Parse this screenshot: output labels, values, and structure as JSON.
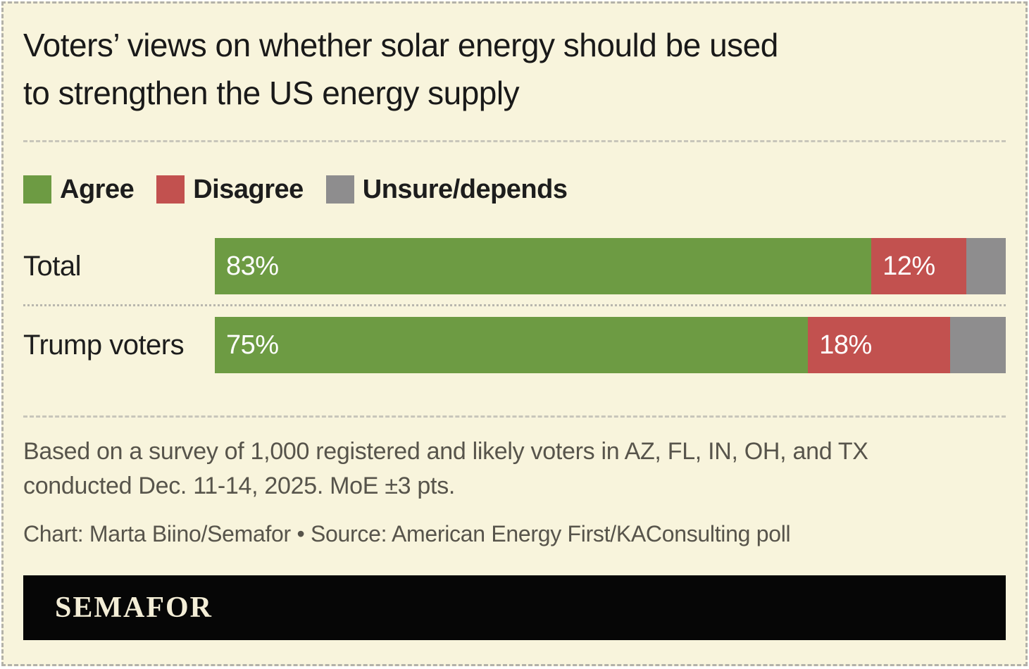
{
  "title": {
    "line1": "Voters’ views on whether solar energy should be used",
    "line2": "to strengthen the US energy supply"
  },
  "chart_data": {
    "type": "bar",
    "orientation": "horizontal_stacked",
    "stacking": "percent",
    "xlim": [
      0,
      100
    ],
    "grid": false,
    "legend_position": "top",
    "title": "Voters’ views on whether solar energy should be used to strengthen the US energy supply",
    "series": [
      {
        "name": "Agree",
        "color": "#6d9b43"
      },
      {
        "name": "Disagree",
        "color": "#c2514f"
      },
      {
        "name": "Unsure/depends",
        "color": "#8e8d8e"
      }
    ],
    "rows": [
      {
        "category": "Total",
        "values": [
          83,
          12,
          5
        ],
        "value_labels": [
          "83%",
          "12%",
          ""
        ]
      },
      {
        "category": "Trump voters",
        "values": [
          75,
          18,
          7
        ],
        "value_labels": [
          "75%",
          "18%",
          ""
        ]
      }
    ]
  },
  "notes": {
    "line1": "Based on a survey of 1,000 registered and likely voters in AZ, FL, IN, OH, and TX",
    "line2": "conducted Dec. 11-14, 2025. MoE ±3 pts."
  },
  "credit": "Chart: Marta Biino/Semafor • Source: American Energy First/KAConsulting poll",
  "logo": "SEMAFOR"
}
